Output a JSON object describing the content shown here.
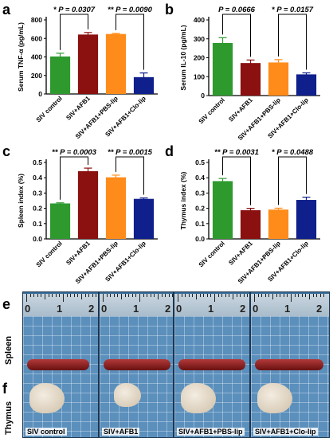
{
  "panel_letters": [
    "a",
    "b",
    "c",
    "d",
    "e",
    "f"
  ],
  "colors": {
    "green": "#2e9a2e",
    "darkred": "#8b1010",
    "orange": "#ff8c1a",
    "navy": "#0f1f8c"
  },
  "chart_data": [
    {
      "type": "bar",
      "letter": "a",
      "ylabel": "Serum TNF-α (pg/mL)",
      "ylim": [
        0,
        800
      ],
      "yticks": [
        0,
        200,
        400,
        600,
        800
      ],
      "categories": [
        "SIV control",
        "SIV+AFB1",
        "SIV+AFB1+PBS-lip",
        "SIV+AFB1+Clo-lip"
      ],
      "values": [
        405,
        642,
        648,
        182
      ],
      "errors": [
        35,
        22,
        6,
        45
      ],
      "annotations": [
        {
          "stars": "*",
          "text": "P = 0.0307",
          "from": 0,
          "to": 1
        },
        {
          "stars": "**",
          "text": "P = 0.0090",
          "from": 2,
          "to": 3
        }
      ]
    },
    {
      "type": "bar",
      "letter": "b",
      "ylabel": "Serum IL-10 (pg/mL)",
      "ylim": [
        0,
        400
      ],
      "yticks": [
        0,
        100,
        200,
        300,
        400
      ],
      "categories": [
        "SIV control",
        "SIV+AFB1",
        "SIV+AFB1+PBS-lip",
        "SIV+AFB1+Clo-lip"
      ],
      "values": [
        278,
        172,
        175,
        112
      ],
      "errors": [
        28,
        16,
        15,
        8
      ],
      "annotations": [
        {
          "stars": "",
          "text": "P = 0.0666",
          "from": 0,
          "to": 1
        },
        {
          "stars": "*",
          "text": "P = 0.0157",
          "from": 2,
          "to": 3
        }
      ]
    },
    {
      "type": "bar",
      "letter": "c",
      "ylabel": "Spleen index (%)",
      "ylim": [
        0,
        0.5
      ],
      "yticks": [
        0.0,
        0.1,
        0.2,
        0.3,
        0.4,
        0.5
      ],
      "categories": [
        "SIV control",
        "SIV+AFB1",
        "SIV+AFB1+PBS-lip",
        "SIV+AFB1+Clo-lip"
      ],
      "values": [
        0.232,
        0.443,
        0.403,
        0.262
      ],
      "errors": [
        0.004,
        0.02,
        0.014,
        0.006
      ],
      "annotations": [
        {
          "stars": "**",
          "text": "P = 0.0003",
          "from": 0,
          "to": 1
        },
        {
          "stars": "**",
          "text": "P = 0.0015",
          "from": 2,
          "to": 3
        }
      ]
    },
    {
      "type": "bar",
      "letter": "d",
      "ylabel": "Thymus index (%)",
      "ylim": [
        0,
        0.5
      ],
      "yticks": [
        0.0,
        0.1,
        0.2,
        0.3,
        0.4,
        0.5
      ],
      "categories": [
        "SIV control",
        "SIV+AFB1",
        "SIV+AFB1+PBS-lip",
        "SIV+AFB1+Clo-lip"
      ],
      "values": [
        0.378,
        0.188,
        0.192,
        0.255
      ],
      "errors": [
        0.017,
        0.012,
        0.009,
        0.018
      ],
      "annotations": [
        {
          "stars": "**",
          "text": "P = 0.0031",
          "from": 0,
          "to": 1
        },
        {
          "stars": "*",
          "text": "P = 0.0488",
          "from": 2,
          "to": 3
        }
      ]
    }
  ],
  "photos": {
    "row_labels": {
      "spleen": "Spleen",
      "thymus": "Thymus"
    },
    "ruler_numbers": [
      "0",
      "1",
      "2"
    ],
    "captions": [
      "SIV control",
      "SIV+AFB1",
      "SIV+AFB1+PBS-lip",
      "SIV+AFB1+Clo-lip"
    ]
  }
}
